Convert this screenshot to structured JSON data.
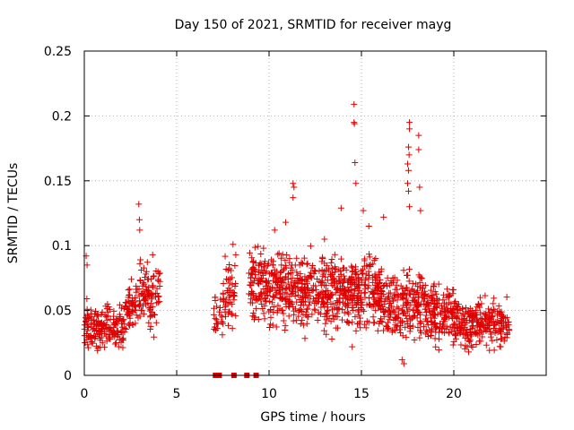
{
  "chart_data": {
    "type": "scatter",
    "title": "Day 150 of 2021, SRMTID for receiver mayg",
    "xlabel": "GPS time / hours",
    "ylabel": "SRMTID / TECUs",
    "xlim": [
      0,
      25
    ],
    "ylim": [
      0,
      0.25
    ],
    "grid": true,
    "color": "#e00000",
    "marker": "plus",
    "x_ticks": [
      {
        "value": 0,
        "label": "0"
      },
      {
        "value": 5,
        "label": "5"
      },
      {
        "value": 10,
        "label": "10"
      },
      {
        "value": 15,
        "label": "15"
      },
      {
        "value": 20,
        "label": "20"
      }
    ],
    "y_ticks": [
      {
        "value": 0,
        "label": "0"
      },
      {
        "value": 0.05,
        "label": "0.05"
      },
      {
        "value": 0.1,
        "label": "0.1"
      },
      {
        "value": 0.15,
        "label": "0.15"
      },
      {
        "value": 0.2,
        "label": "0.2"
      },
      {
        "value": 0.25,
        "label": "0.25"
      }
    ],
    "series": [
      {
        "name": "SRMTID",
        "segments": [
          {
            "x_start": 0.0,
            "x_end": 2.2,
            "center": 0.037,
            "spread": 0.012,
            "n": 180
          },
          {
            "x_start": 2.2,
            "x_end": 3.0,
            "center": 0.055,
            "spread": 0.012,
            "n": 60
          },
          {
            "x_start": 3.0,
            "x_end": 4.1,
            "center": 0.06,
            "spread": 0.016,
            "n": 90
          },
          {
            "x_start": 7.0,
            "x_end": 7.5,
            "center": 0.045,
            "spread": 0.012,
            "n": 25
          },
          {
            "x_start": 7.5,
            "x_end": 8.2,
            "center": 0.062,
            "spread": 0.016,
            "n": 55
          },
          {
            "x_start": 8.9,
            "x_end": 10.8,
            "center": 0.07,
            "spread": 0.018,
            "n": 200
          },
          {
            "x_start": 10.8,
            "x_end": 14.0,
            "center": 0.065,
            "spread": 0.018,
            "n": 320
          },
          {
            "x_start": 14.0,
            "x_end": 16.0,
            "center": 0.065,
            "spread": 0.02,
            "n": 220
          },
          {
            "x_start": 16.0,
            "x_end": 18.5,
            "center": 0.055,
            "spread": 0.018,
            "n": 240
          },
          {
            "x_start": 18.5,
            "x_end": 20.0,
            "center": 0.048,
            "spread": 0.015,
            "n": 150
          },
          {
            "x_start": 20.0,
            "x_end": 23.0,
            "center": 0.04,
            "spread": 0.013,
            "n": 260
          }
        ],
        "spikes": [
          {
            "x": 0.1,
            "y": 0.092
          },
          {
            "x": 0.15,
            "y": 0.085
          },
          {
            "x": 2.95,
            "y": 0.132
          },
          {
            "x": 2.98,
            "y": 0.12
          },
          {
            "x": 3.0,
            "y": 0.112
          },
          {
            "x": 3.7,
            "y": 0.093
          },
          {
            "x": 8.05,
            "y": 0.101
          },
          {
            "x": 8.2,
            "y": 0.093
          },
          {
            "x": 9.7,
            "y": 0.098
          },
          {
            "x": 10.3,
            "y": 0.112
          },
          {
            "x": 10.9,
            "y": 0.118
          },
          {
            "x": 11.3,
            "y": 0.148
          },
          {
            "x": 11.35,
            "y": 0.145
          },
          {
            "x": 11.3,
            "y": 0.137
          },
          {
            "x": 13.0,
            "y": 0.105
          },
          {
            "x": 13.9,
            "y": 0.129
          },
          {
            "x": 14.6,
            "y": 0.209
          },
          {
            "x": 14.6,
            "y": 0.195
          },
          {
            "x": 14.62,
            "y": 0.194
          },
          {
            "x": 14.65,
            "y": 0.164
          },
          {
            "x": 14.7,
            "y": 0.148
          },
          {
            "x": 15.1,
            "y": 0.127
          },
          {
            "x": 15.4,
            "y": 0.115
          },
          {
            "x": 16.2,
            "y": 0.122
          },
          {
            "x": 17.6,
            "y": 0.195
          },
          {
            "x": 17.6,
            "y": 0.19
          },
          {
            "x": 17.55,
            "y": 0.176
          },
          {
            "x": 17.58,
            "y": 0.17
          },
          {
            "x": 17.5,
            "y": 0.163
          },
          {
            "x": 17.55,
            "y": 0.158
          },
          {
            "x": 17.5,
            "y": 0.148
          },
          {
            "x": 17.55,
            "y": 0.142
          },
          {
            "x": 17.6,
            "y": 0.13
          },
          {
            "x": 18.1,
            "y": 0.185
          },
          {
            "x": 18.1,
            "y": 0.174
          },
          {
            "x": 18.15,
            "y": 0.145
          },
          {
            "x": 18.2,
            "y": 0.127
          },
          {
            "x": 17.2,
            "y": 0.012
          },
          {
            "x": 17.3,
            "y": 0.009
          },
          {
            "x": 13.4,
            "y": 0.028
          },
          {
            "x": 14.5,
            "y": 0.022
          },
          {
            "x": 20.8,
            "y": 0.018
          }
        ],
        "gap_markers_x": [
          7.1,
          7.3,
          8.1,
          8.8,
          9.3
        ]
      }
    ]
  }
}
